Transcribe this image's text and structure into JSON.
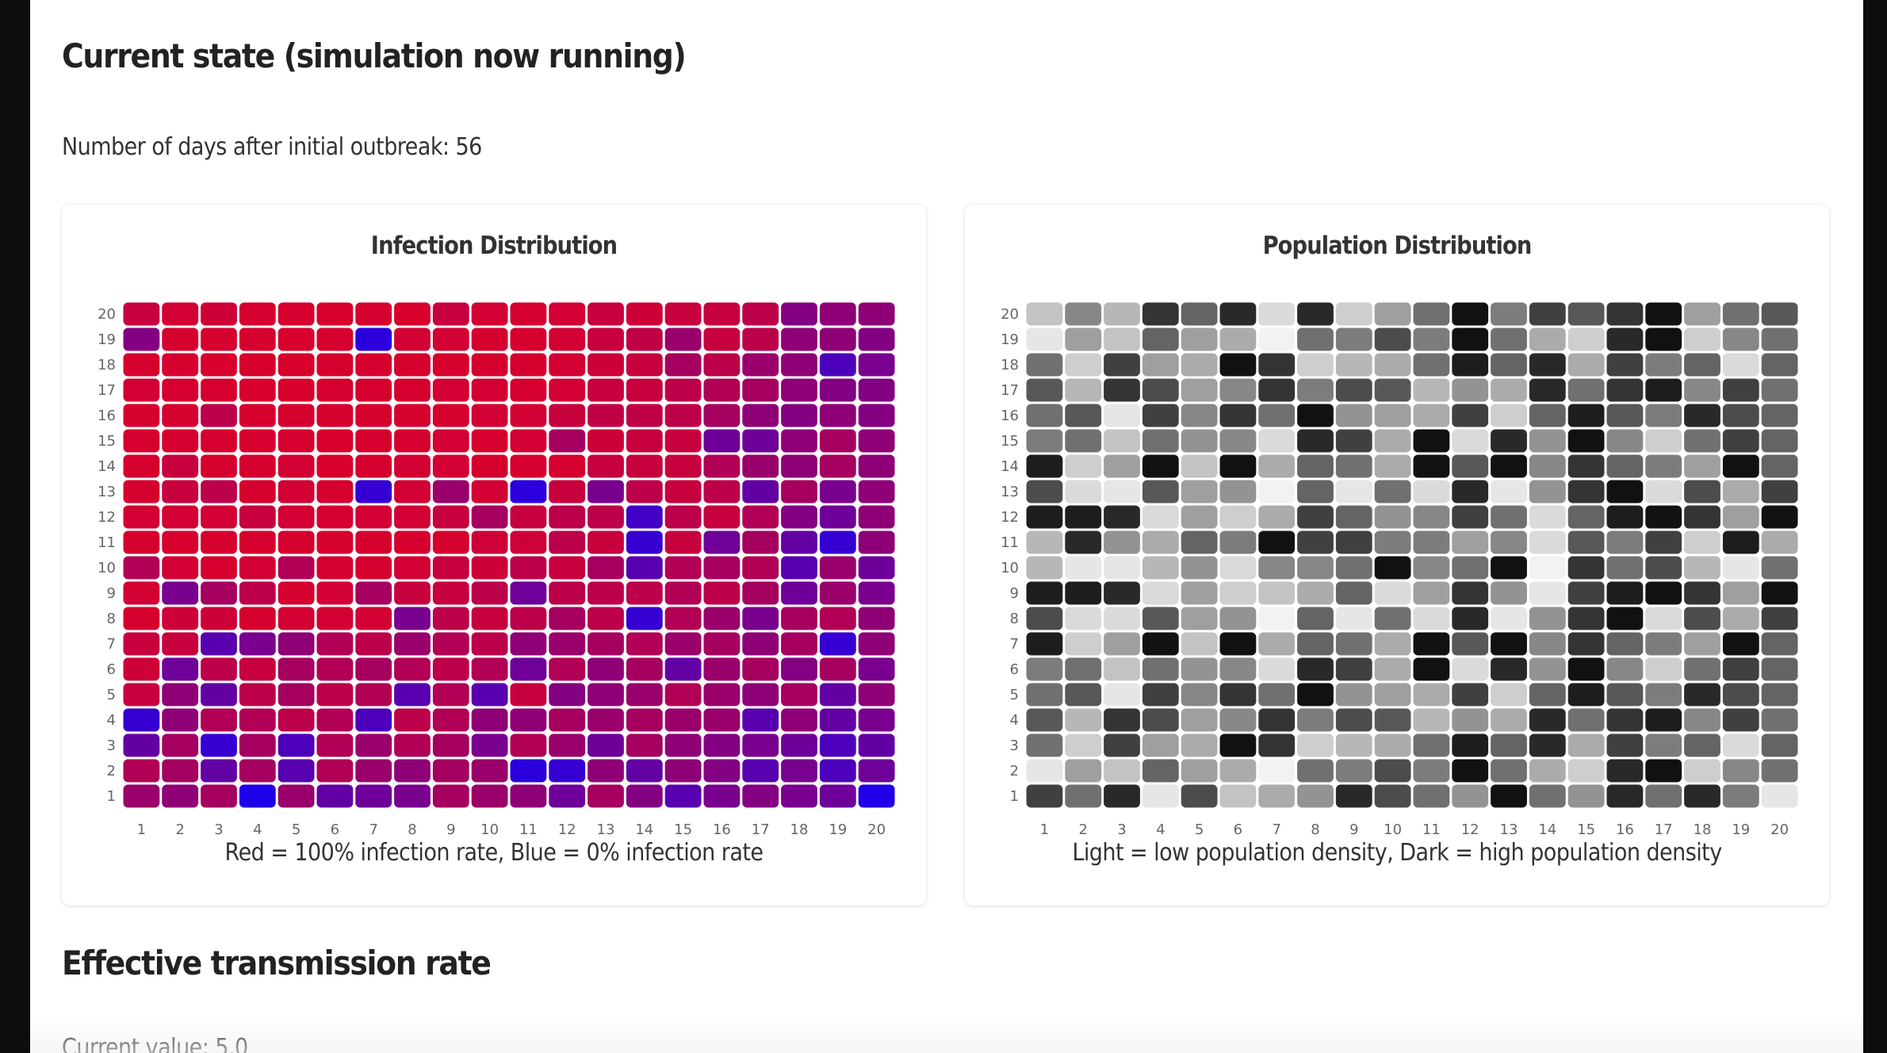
{
  "header": {
    "title": "Current state (simulation now running)",
    "days_text": "Number of days after initial outbreak: 56"
  },
  "infection_card": {
    "title": "Infection Distribution",
    "caption": "Red = 100% infection rate, Blue = 0% infection rate"
  },
  "population_card": {
    "title": "Population Distribution",
    "caption": "Light = low population density, Dark = high population density"
  },
  "transmission": {
    "title": "Effective transmission rate",
    "current_value_text": "Current value: 5.0"
  },
  "colors": {
    "infection_high": "#e8001c",
    "infection_low": "#0a00ff",
    "population_low": "#f2f2f2",
    "population_high": "#050505"
  },
  "chart_data": [
    {
      "type": "heatmap",
      "title": "Infection Distribution",
      "x": [
        1,
        2,
        3,
        4,
        5,
        6,
        7,
        8,
        9,
        10,
        11,
        12,
        13,
        14,
        15,
        16,
        17,
        18,
        19,
        20
      ],
      "y": [
        1,
        2,
        3,
        4,
        5,
        6,
        7,
        8,
        9,
        10,
        11,
        12,
        13,
        14,
        15,
        16,
        17,
        18,
        19,
        20
      ],
      "value_range": [
        0,
        1
      ],
      "legend": "Red = 100% infection rate, Blue = 0% infection rate",
      "rows_top_to_bottom": [
        [
          0.85,
          0.9,
          0.88,
          0.92,
          0.92,
          0.93,
          0.92,
          0.93,
          0.85,
          0.9,
          0.92,
          0.9,
          0.85,
          0.88,
          0.85,
          0.85,
          0.8,
          0.55,
          0.6,
          0.6
        ],
        [
          0.55,
          0.92,
          0.92,
          0.92,
          0.93,
          0.92,
          0.15,
          0.9,
          0.9,
          0.92,
          0.92,
          0.9,
          0.85,
          0.82,
          0.65,
          0.85,
          0.8,
          0.6,
          0.6,
          0.55
        ],
        [
          0.92,
          0.92,
          0.93,
          0.93,
          0.93,
          0.92,
          0.92,
          0.92,
          0.92,
          0.92,
          0.92,
          0.9,
          0.88,
          0.85,
          0.7,
          0.8,
          0.65,
          0.6,
          0.3,
          0.5
        ],
        [
          0.9,
          0.92,
          0.92,
          0.93,
          0.93,
          0.92,
          0.92,
          0.92,
          0.9,
          0.9,
          0.92,
          0.9,
          0.85,
          0.85,
          0.8,
          0.75,
          0.7,
          0.6,
          0.55,
          0.55
        ],
        [
          0.92,
          0.92,
          0.8,
          0.92,
          0.92,
          0.92,
          0.92,
          0.92,
          0.92,
          0.9,
          0.9,
          0.85,
          0.82,
          0.82,
          0.8,
          0.7,
          0.6,
          0.55,
          0.6,
          0.55
        ],
        [
          0.92,
          0.92,
          0.92,
          0.92,
          0.92,
          0.93,
          0.92,
          0.92,
          0.9,
          0.92,
          0.9,
          0.7,
          0.88,
          0.85,
          0.85,
          0.45,
          0.45,
          0.6,
          0.7,
          0.6
        ],
        [
          0.92,
          0.85,
          0.92,
          0.92,
          0.9,
          0.93,
          0.92,
          0.9,
          0.9,
          0.92,
          0.92,
          0.92,
          0.85,
          0.85,
          0.85,
          0.75,
          0.65,
          0.6,
          0.7,
          0.6
        ],
        [
          0.92,
          0.85,
          0.8,
          0.92,
          0.9,
          0.92,
          0.2,
          0.9,
          0.65,
          0.9,
          0.15,
          0.85,
          0.5,
          0.8,
          0.85,
          0.8,
          0.4,
          0.7,
          0.5,
          0.6
        ],
        [
          0.9,
          0.9,
          0.9,
          0.85,
          0.9,
          0.92,
          0.9,
          0.9,
          0.85,
          0.7,
          0.85,
          0.8,
          0.8,
          0.25,
          0.8,
          0.85,
          0.75,
          0.55,
          0.45,
          0.6
        ],
        [
          0.92,
          0.92,
          0.92,
          0.92,
          0.92,
          0.92,
          0.92,
          0.92,
          0.92,
          0.88,
          0.88,
          0.8,
          0.85,
          0.2,
          0.85,
          0.45,
          0.7,
          0.4,
          0.2,
          0.6
        ],
        [
          0.75,
          0.9,
          0.92,
          0.9,
          0.75,
          0.92,
          0.92,
          0.9,
          0.85,
          0.88,
          0.8,
          0.85,
          0.7,
          0.35,
          0.75,
          0.7,
          0.75,
          0.35,
          0.65,
          0.45
        ],
        [
          0.9,
          0.5,
          0.7,
          0.8,
          0.92,
          0.9,
          0.7,
          0.85,
          0.85,
          0.8,
          0.45,
          0.8,
          0.8,
          0.8,
          0.75,
          0.8,
          0.7,
          0.45,
          0.65,
          0.5
        ],
        [
          0.92,
          0.88,
          0.88,
          0.92,
          0.9,
          0.9,
          0.9,
          0.5,
          0.8,
          0.85,
          0.8,
          0.7,
          0.8,
          0.2,
          0.75,
          0.65,
          0.5,
          0.7,
          0.75,
          0.6
        ],
        [
          0.85,
          0.85,
          0.35,
          0.5,
          0.6,
          0.75,
          0.8,
          0.65,
          0.75,
          0.8,
          0.6,
          0.65,
          0.7,
          0.75,
          0.65,
          0.7,
          0.6,
          0.7,
          0.2,
          0.6
        ],
        [
          0.88,
          0.45,
          0.8,
          0.85,
          0.7,
          0.75,
          0.7,
          0.75,
          0.8,
          0.75,
          0.45,
          0.75,
          0.6,
          0.7,
          0.4,
          0.65,
          0.7,
          0.55,
          0.7,
          0.5
        ],
        [
          0.85,
          0.6,
          0.4,
          0.8,
          0.7,
          0.8,
          0.75,
          0.35,
          0.75,
          0.35,
          0.85,
          0.55,
          0.6,
          0.65,
          0.75,
          0.65,
          0.6,
          0.7,
          0.4,
          0.6
        ],
        [
          0.2,
          0.6,
          0.75,
          0.75,
          0.8,
          0.75,
          0.3,
          0.8,
          0.75,
          0.6,
          0.6,
          0.7,
          0.65,
          0.7,
          0.65,
          0.65,
          0.35,
          0.6,
          0.4,
          0.5
        ],
        [
          0.4,
          0.7,
          0.2,
          0.7,
          0.3,
          0.75,
          0.65,
          0.75,
          0.7,
          0.5,
          0.75,
          0.65,
          0.45,
          0.7,
          0.6,
          0.55,
          0.5,
          0.45,
          0.3,
          0.4
        ],
        [
          0.75,
          0.7,
          0.4,
          0.7,
          0.35,
          0.75,
          0.65,
          0.6,
          0.7,
          0.65,
          0.15,
          0.2,
          0.6,
          0.4,
          0.6,
          0.55,
          0.35,
          0.5,
          0.3,
          0.45
        ],
        [
          0.65,
          0.6,
          0.7,
          0.1,
          0.65,
          0.4,
          0.45,
          0.5,
          0.7,
          0.65,
          0.6,
          0.45,
          0.7,
          0.55,
          0.35,
          0.5,
          0.55,
          0.5,
          0.45,
          0.1
        ]
      ]
    },
    {
      "type": "heatmap",
      "title": "Population Distribution",
      "x": [
        1,
        2,
        3,
        4,
        5,
        6,
        7,
        8,
        9,
        10,
        11,
        12,
        13,
        14,
        15,
        16,
        17,
        18,
        19,
        20
      ],
      "y": [
        1,
        2,
        3,
        4,
        5,
        6,
        7,
        8,
        9,
        10,
        11,
        12,
        13,
        14,
        15,
        16,
        17,
        18,
        19,
        20
      ],
      "value_range": [
        0,
        1
      ],
      "legend": "Light = low population density, Dark = high population density",
      "rows_top_to_bottom": [
        [
          0.2,
          0.45,
          0.25,
          0.8,
          0.6,
          0.85,
          0.1,
          0.85,
          0.15,
          0.35,
          0.55,
          0.95,
          0.5,
          0.75,
          0.65,
          0.8,
          0.95,
          0.35,
          0.55,
          0.65
        ],
        [
          0.05,
          0.35,
          0.2,
          0.6,
          0.35,
          0.3,
          0.0,
          0.55,
          0.5,
          0.7,
          0.5,
          0.95,
          0.55,
          0.3,
          0.15,
          0.85,
          0.95,
          0.15,
          0.45,
          0.55
        ],
        [
          0.55,
          0.15,
          0.75,
          0.35,
          0.3,
          0.95,
          0.8,
          0.15,
          0.25,
          0.3,
          0.55,
          0.9,
          0.6,
          0.85,
          0.3,
          0.75,
          0.5,
          0.6,
          0.1,
          0.6
        ],
        [
          0.65,
          0.25,
          0.8,
          0.7,
          0.35,
          0.45,
          0.8,
          0.5,
          0.7,
          0.65,
          0.25,
          0.4,
          0.3,
          0.85,
          0.55,
          0.8,
          0.9,
          0.45,
          0.75,
          0.55
        ],
        [
          0.55,
          0.65,
          0.05,
          0.75,
          0.45,
          0.8,
          0.55,
          0.95,
          0.4,
          0.35,
          0.3,
          0.75,
          0.15,
          0.6,
          0.9,
          0.65,
          0.5,
          0.85,
          0.7,
          0.6
        ],
        [
          0.5,
          0.55,
          0.2,
          0.55,
          0.4,
          0.45,
          0.1,
          0.85,
          0.75,
          0.3,
          0.95,
          0.1,
          0.85,
          0.4,
          0.95,
          0.45,
          0.15,
          0.55,
          0.75,
          0.6
        ],
        [
          0.9,
          0.15,
          0.35,
          0.95,
          0.2,
          0.95,
          0.3,
          0.6,
          0.55,
          0.3,
          0.95,
          0.65,
          0.95,
          0.45,
          0.8,
          0.6,
          0.5,
          0.35,
          0.95,
          0.6
        ],
        [
          0.7,
          0.1,
          0.05,
          0.65,
          0.35,
          0.4,
          0.0,
          0.6,
          0.05,
          0.55,
          0.1,
          0.85,
          0.05,
          0.4,
          0.8,
          0.95,
          0.1,
          0.7,
          0.3,
          0.75
        ],
        [
          0.9,
          0.9,
          0.85,
          0.1,
          0.35,
          0.15,
          0.3,
          0.75,
          0.6,
          0.4,
          0.45,
          0.75,
          0.55,
          0.1,
          0.6,
          0.9,
          0.95,
          0.8,
          0.35,
          0.95
        ],
        [
          0.25,
          0.85,
          0.4,
          0.3,
          0.6,
          0.5,
          0.95,
          0.75,
          0.75,
          0.5,
          0.5,
          0.35,
          0.45,
          0.1,
          0.65,
          0.5,
          0.75,
          0.15,
          0.9,
          0.3
        ],
        [
          0.25,
          0.05,
          0.05,
          0.25,
          0.4,
          0.1,
          0.45,
          0.45,
          0.55,
          0.95,
          0.45,
          0.55,
          0.95,
          0.0,
          0.8,
          0.55,
          0.7,
          0.25,
          0.05,
          0.55
        ],
        [
          0.9,
          0.9,
          0.85,
          0.1,
          0.35,
          0.15,
          0.2,
          0.3,
          0.6,
          0.1,
          0.35,
          0.8,
          0.4,
          0.05,
          0.75,
          0.9,
          0.95,
          0.8,
          0.35,
          0.95
        ],
        [
          0.7,
          0.1,
          0.1,
          0.65,
          0.35,
          0.4,
          0.0,
          0.6,
          0.05,
          0.55,
          0.1,
          0.85,
          0.05,
          0.4,
          0.8,
          0.95,
          0.1,
          0.7,
          0.3,
          0.75
        ],
        [
          0.9,
          0.15,
          0.35,
          0.95,
          0.2,
          0.95,
          0.3,
          0.6,
          0.55,
          0.3,
          0.95,
          0.65,
          0.95,
          0.45,
          0.8,
          0.6,
          0.5,
          0.35,
          0.95,
          0.6
        ],
        [
          0.5,
          0.55,
          0.2,
          0.55,
          0.4,
          0.45,
          0.1,
          0.85,
          0.75,
          0.3,
          0.95,
          0.1,
          0.85,
          0.4,
          0.95,
          0.45,
          0.15,
          0.55,
          0.75,
          0.6
        ],
        [
          0.55,
          0.65,
          0.05,
          0.75,
          0.45,
          0.8,
          0.55,
          0.95,
          0.4,
          0.35,
          0.3,
          0.75,
          0.15,
          0.6,
          0.9,
          0.65,
          0.5,
          0.85,
          0.7,
          0.6
        ],
        [
          0.65,
          0.25,
          0.8,
          0.7,
          0.35,
          0.45,
          0.8,
          0.5,
          0.7,
          0.65,
          0.25,
          0.4,
          0.3,
          0.85,
          0.55,
          0.8,
          0.9,
          0.45,
          0.75,
          0.55
        ],
        [
          0.55,
          0.15,
          0.75,
          0.35,
          0.3,
          0.95,
          0.8,
          0.15,
          0.25,
          0.3,
          0.55,
          0.9,
          0.6,
          0.85,
          0.3,
          0.75,
          0.5,
          0.6,
          0.1,
          0.6
        ],
        [
          0.05,
          0.35,
          0.2,
          0.6,
          0.35,
          0.3,
          0.0,
          0.55,
          0.5,
          0.7,
          0.5,
          0.95,
          0.55,
          0.3,
          0.15,
          0.85,
          0.95,
          0.15,
          0.45,
          0.55
        ],
        [
          0.75,
          0.55,
          0.85,
          0.05,
          0.7,
          0.2,
          0.3,
          0.4,
          0.85,
          0.7,
          0.55,
          0.4,
          0.95,
          0.55,
          0.4,
          0.85,
          0.55,
          0.85,
          0.5,
          0.05
        ]
      ]
    }
  ]
}
